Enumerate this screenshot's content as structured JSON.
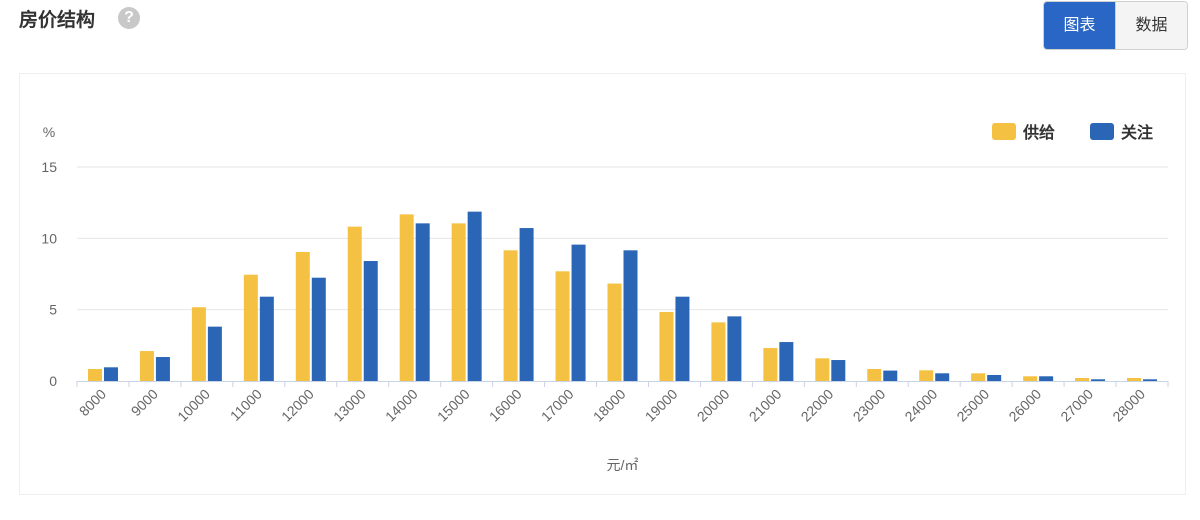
{
  "header": {
    "title": "房价结构",
    "help_icon": "?"
  },
  "view_toggle": {
    "chart_label": "图表",
    "data_label": "数据",
    "active": "chart"
  },
  "colors": {
    "supply": "#f5c142",
    "attention": "#2a66b5",
    "accent": "#2a66c5"
  },
  "chart_data": {
    "type": "bar",
    "ylabel": "%",
    "xlabel": "元/㎡",
    "ylim": [
      0,
      15
    ],
    "yticks": [
      0,
      5,
      10,
      15
    ],
    "grid": true,
    "legend_position": "top-right",
    "categories": [
      "8000",
      "9000",
      "10000",
      "11000",
      "12000",
      "13000",
      "14000",
      "15000",
      "16000",
      "17000",
      "18000",
      "19000",
      "20000",
      "21000",
      "22000",
      "23000",
      "24000",
      "25000",
      "26000",
      "27000",
      "28000"
    ],
    "series": [
      {
        "name": "供给",
        "color": "#f5c142",
        "values": [
          0.84,
          2.1,
          5.17,
          7.45,
          9.04,
          10.82,
          11.68,
          11.05,
          9.16,
          7.69,
          6.83,
          4.84,
          4.11,
          2.31,
          1.59,
          0.84,
          0.75,
          0.54,
          0.33,
          0.21,
          0.21
        ]
      },
      {
        "name": "关注",
        "color": "#2a66b5",
        "values": [
          0.96,
          1.68,
          3.81,
          5.91,
          7.24,
          8.41,
          11.05,
          11.87,
          10.72,
          9.56,
          9.16,
          5.91,
          4.53,
          2.73,
          1.47,
          0.73,
          0.54,
          0.42,
          0.33,
          0.12,
          0.12
        ]
      }
    ]
  }
}
